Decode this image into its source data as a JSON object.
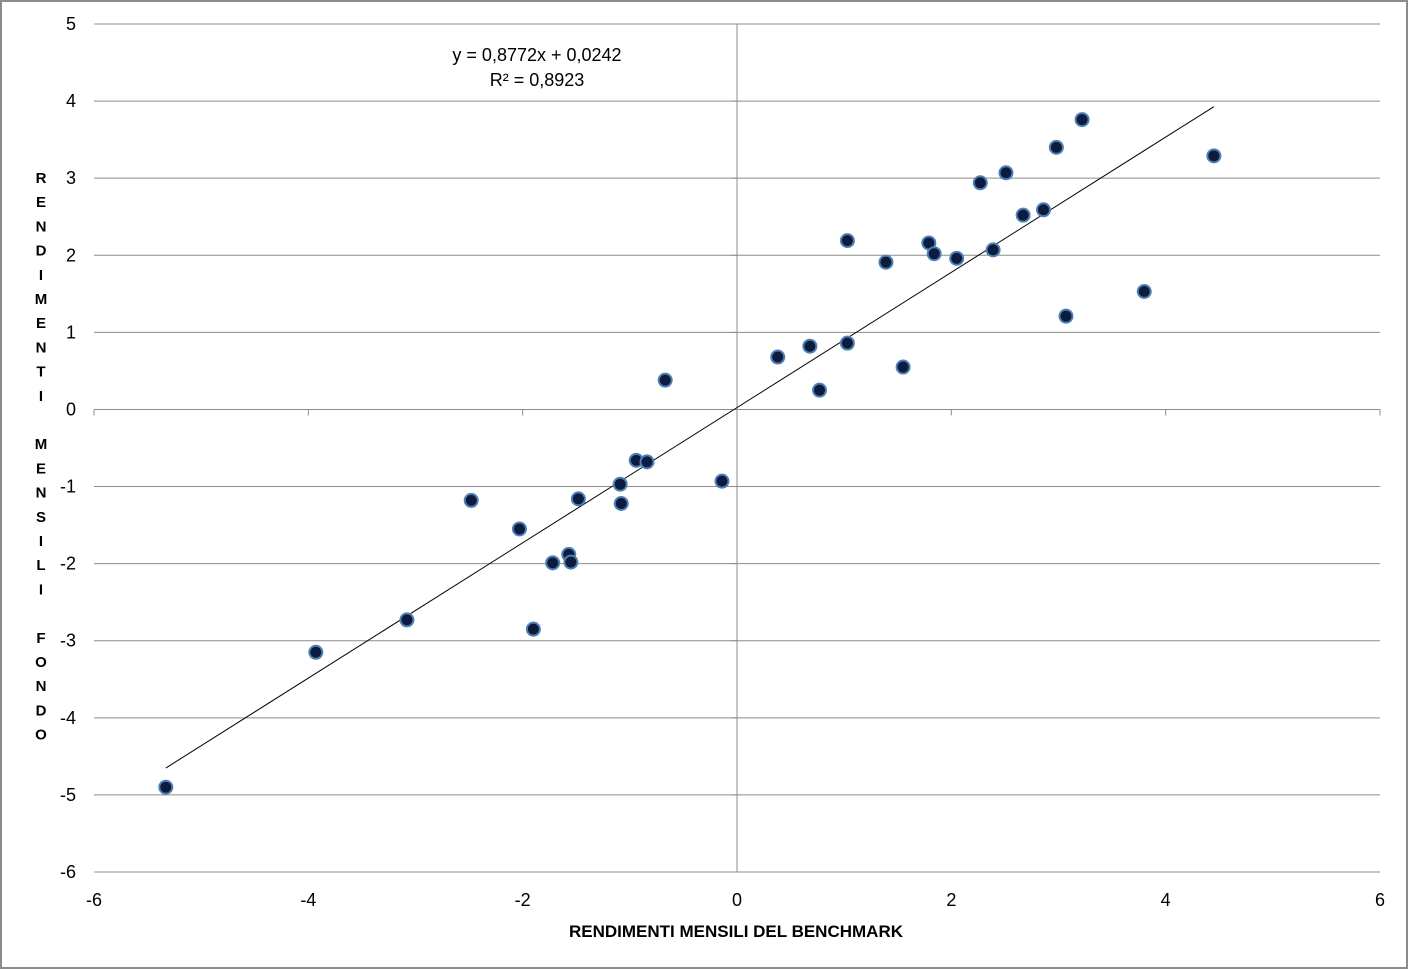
{
  "chart_data": {
    "type": "scatter",
    "xlabel": "RENDIMENTI MENSILI DEL BENCHMARK",
    "ylabel": "RENDIMENTI MENSILI FONDO",
    "ylabel_lines": [
      "R",
      "E",
      "N",
      "D",
      "I",
      "M",
      "E",
      "N",
      "T",
      "I",
      "",
      "M",
      "E",
      "N",
      "S",
      "I",
      "L",
      "I",
      "",
      "F",
      "O",
      "N",
      "D",
      "O"
    ],
    "xlim": [
      -6,
      6
    ],
    "ylim": [
      -6,
      5
    ],
    "x_ticks": [
      -6,
      -4,
      -2,
      0,
      2,
      4,
      6
    ],
    "y_ticks": [
      -6,
      -5,
      -4,
      -3,
      -2,
      -1,
      0,
      1,
      2,
      3,
      4,
      5
    ],
    "grid": "horizontal",
    "trendline": {
      "type": "linear",
      "slope": 0.8772,
      "intercept": 0.0242,
      "x_range": [
        -5.33,
        4.45
      ],
      "equation_label": "y = 0,8772x + 0,0242",
      "r2_label": "R² = 0,8923"
    },
    "marker_color": "#0d1b3d",
    "marker_edge_color": "#4f7fb5",
    "points": [
      {
        "x": -5.33,
        "y": -4.9
      },
      {
        "x": -3.93,
        "y": -3.15
      },
      {
        "x": -3.08,
        "y": -2.73
      },
      {
        "x": -2.48,
        "y": -1.18
      },
      {
        "x": -2.03,
        "y": -1.55
      },
      {
        "x": -1.9,
        "y": -2.85
      },
      {
        "x": -1.72,
        "y": -1.99
      },
      {
        "x": -1.57,
        "y": -1.88
      },
      {
        "x": -1.55,
        "y": -1.98
      },
      {
        "x": -1.48,
        "y": -1.16
      },
      {
        "x": -1.09,
        "y": -0.97
      },
      {
        "x": -1.08,
        "y": -1.22
      },
      {
        "x": -0.94,
        "y": -0.66
      },
      {
        "x": -0.84,
        "y": -0.68
      },
      {
        "x": -0.67,
        "y": 0.38
      },
      {
        "x": -0.14,
        "y": -0.93
      },
      {
        "x": 0.38,
        "y": 0.68
      },
      {
        "x": 0.68,
        "y": 0.82
      },
      {
        "x": 0.77,
        "y": 0.25
      },
      {
        "x": 1.03,
        "y": 0.86
      },
      {
        "x": 1.03,
        "y": 2.19
      },
      {
        "x": 1.39,
        "y": 1.91
      },
      {
        "x": 1.55,
        "y": 0.55
      },
      {
        "x": 1.79,
        "y": 2.16
      },
      {
        "x": 1.84,
        "y": 2.02
      },
      {
        "x": 2.05,
        "y": 1.96
      },
      {
        "x": 2.27,
        "y": 2.94
      },
      {
        "x": 2.39,
        "y": 2.07
      },
      {
        "x": 2.51,
        "y": 3.07
      },
      {
        "x": 2.67,
        "y": 2.52
      },
      {
        "x": 2.86,
        "y": 2.59
      },
      {
        "x": 2.98,
        "y": 3.4
      },
      {
        "x": 3.07,
        "y": 1.21
      },
      {
        "x": 3.22,
        "y": 3.76
      },
      {
        "x": 3.8,
        "y": 1.53
      },
      {
        "x": 4.45,
        "y": 3.29
      }
    ]
  }
}
